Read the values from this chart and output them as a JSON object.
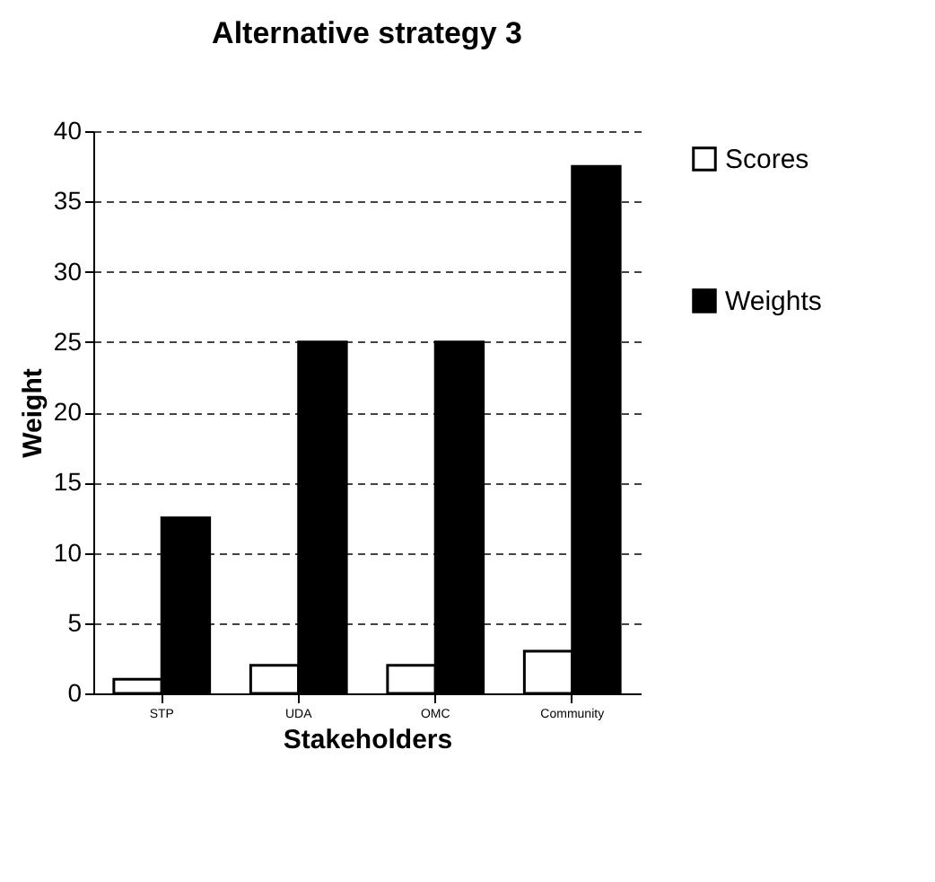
{
  "chart_data": {
    "type": "bar",
    "title": "Alternative strategy 3",
    "xlabel": "Stakeholders",
    "ylabel": "Weight",
    "categories": [
      "STP",
      "UDA",
      "OMC",
      "Community"
    ],
    "series": [
      {
        "name": "Scores",
        "color": "#ffffff",
        "values": [
          1,
          2,
          2,
          3
        ]
      },
      {
        "name": "Weights",
        "color": "#000000",
        "values": [
          12.5,
          25,
          25,
          37.5
        ]
      }
    ],
    "ylim": [
      0,
      40
    ],
    "yticks": [
      0,
      5,
      10,
      15,
      20,
      25,
      30,
      35,
      40
    ],
    "grid": "y",
    "legend": "right"
  }
}
